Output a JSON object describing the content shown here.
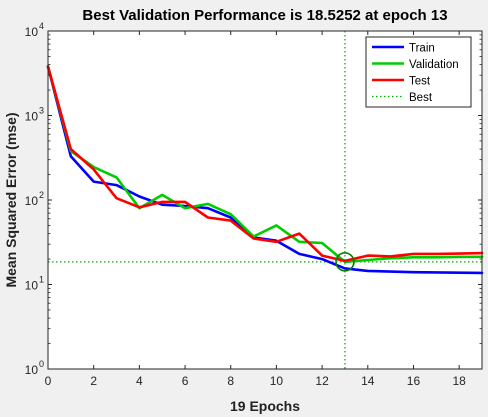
{
  "chart_data": {
    "type": "line",
    "title": "Best Validation Performance is 18.5252 at epoch 13",
    "xlabel": "19 Epochs",
    "ylabel": "Mean Squared Error  (mse)",
    "xlim": [
      0,
      19
    ],
    "ylim": [
      1,
      10000
    ],
    "yscale": "log",
    "x_ticks": [
      0,
      2,
      4,
      6,
      8,
      10,
      12,
      14,
      16,
      18
    ],
    "y_ticks": [
      {
        "value": 1,
        "base": "10",
        "exp": "0"
      },
      {
        "value": 10,
        "base": "10",
        "exp": "1"
      },
      {
        "value": 100,
        "base": "10",
        "exp": "2"
      },
      {
        "value": 1000,
        "base": "10",
        "exp": "3"
      },
      {
        "value": 10000,
        "base": "10",
        "exp": "4"
      }
    ],
    "grid": false,
    "legend_position": "top-right",
    "x": [
      0,
      1,
      2,
      3,
      4,
      5,
      6,
      7,
      8,
      9,
      10,
      11,
      12,
      13,
      14,
      15,
      16,
      17,
      18,
      19
    ],
    "series": [
      {
        "name": "Train",
        "color": "#0000ff",
        "values": [
          3800,
          330,
          165,
          150,
          110,
          88,
          85,
          80,
          62,
          36,
          33,
          23,
          20,
          15.5,
          14.5,
          14.2,
          14,
          13.9,
          13.8,
          13.7
        ]
      },
      {
        "name": "Validation",
        "color": "#00cc00",
        "values": [
          3800,
          380,
          245,
          185,
          80,
          115,
          80,
          90,
          68,
          37,
          50,
          32,
          31,
          18.5252,
          19.5,
          20.5,
          21,
          21,
          21.2,
          21.3
        ]
      },
      {
        "name": "Test",
        "color": "#ff0000",
        "values": [
          3800,
          400,
          230,
          105,
          82,
          95,
          95,
          62,
          57,
          35,
          32,
          40,
          22,
          19,
          22,
          21.5,
          23,
          23,
          23.2,
          23.5
        ]
      }
    ],
    "best": {
      "name": "Best",
      "color": "#00aa00",
      "epoch": 13,
      "value": 18.5252
    }
  }
}
